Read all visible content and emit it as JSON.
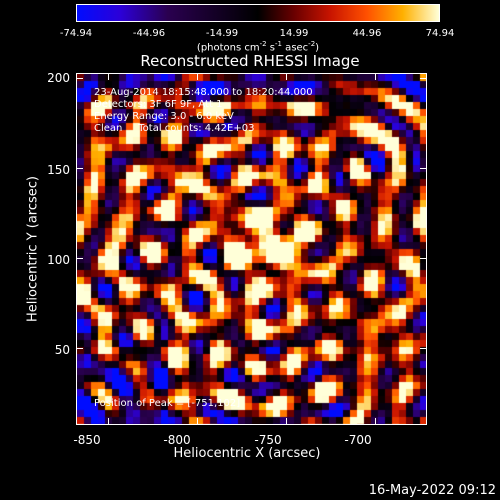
{
  "colorbar": {
    "ticks": [
      "-74.94",
      "-44.96",
      "-14.99",
      "14.99",
      "44.96",
      "74.94"
    ],
    "unit_prefix": "(photons cm",
    "unit_exp1": "-2",
    "unit_mid1": " s",
    "unit_exp2": "-1",
    "unit_mid2": " asec",
    "unit_exp3": "-2",
    "unit_suffix": ")"
  },
  "title": "Reconstructed RHESSI Image",
  "info": {
    "line1": "23-Aug-2014 18:15:48.000 to 18:20:44.000",
    "line2": "Detectors: 3F 6F 9F, Att 1",
    "line3": "Energy Range: 3.0 - 6.0 keV",
    "line4": "Clean     Total counts: 4.42E+03",
    "peak": "Position of Peak = [-751,102]"
  },
  "axes": {
    "xlabel": "Heliocentric X (arcsec)",
    "ylabel": "Heliocentric Y (arcsec)",
    "xticks": [
      "-850",
      "-800",
      "-750",
      "-700"
    ],
    "yticks": [
      "50",
      "100",
      "150",
      "200"
    ]
  },
  "timestamp": "16-May-2022 09:12",
  "chart_data": {
    "type": "heatmap",
    "title": "Reconstructed RHESSI Image",
    "xlabel": "Heliocentric X (arcsec)",
    "ylabel": "Heliocentric Y (arcsec)",
    "xlim": [
      -868,
      -671
    ],
    "ylim": [
      7,
      203
    ],
    "color_range": [
      -74.94,
      74.94
    ],
    "colorbar_ticks": [
      -74.94,
      -44.96,
      -14.99,
      14.99,
      44.96,
      74.94
    ],
    "peak": {
      "x": -751,
      "y": 102
    },
    "xticks": [
      -850,
      -800,
      -750,
      -700
    ],
    "yticks": [
      50,
      100,
      150,
      200
    ]
  }
}
